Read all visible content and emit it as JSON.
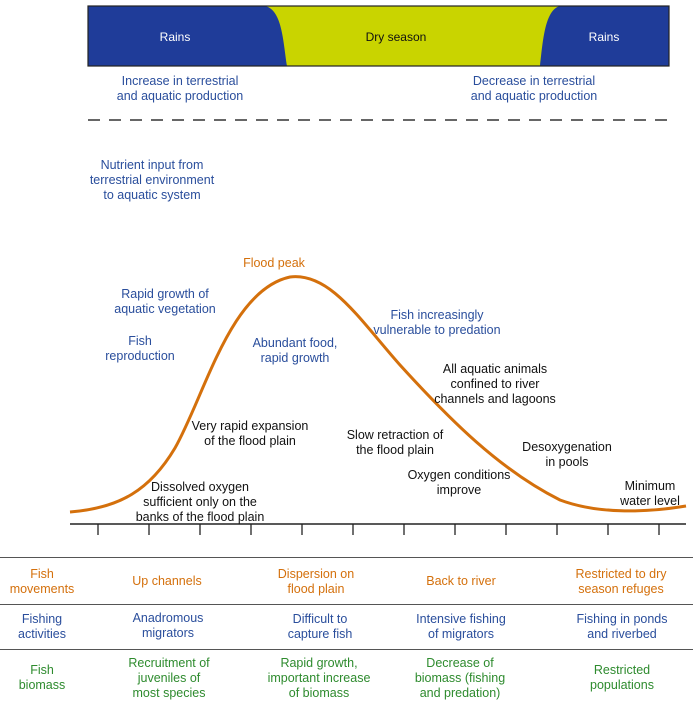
{
  "colors": {
    "rains": "#1f3c99",
    "dry": "#c9d400",
    "blue_text": "#2a4e9c",
    "orange": "#d4700c",
    "green_text": "#2e8b2e"
  },
  "season_bar": {
    "rains_left": "Rains",
    "dry": "Dry season",
    "rains_right": "Rains"
  },
  "top_notes": {
    "increase": [
      "Increase in terrestrial",
      "and aquatic production"
    ],
    "decrease": [
      "Decrease in terrestrial",
      "and aquatic production"
    ],
    "nutrient": [
      "Nutrient input from",
      "terrestrial environment",
      "to aquatic system"
    ]
  },
  "curve_labels": {
    "flood_peak": "Flood peak",
    "rapid_growth_veg": [
      "Rapid growth of",
      "aquatic vegetation"
    ],
    "fish_reproduction": [
      "Fish",
      "reproduction"
    ],
    "abundant_food": [
      "Abundant food,",
      "rapid growth"
    ],
    "fish_vulnerable": [
      "Fish increasingly",
      "vulnerable to predation"
    ],
    "confined": [
      "All aquatic animals",
      "confined to river",
      "channels and lagoons"
    ],
    "rapid_expansion": [
      "Very rapid expansion",
      "of the flood plain"
    ],
    "slow_retraction": [
      "Slow retraction of",
      "the flood plain"
    ],
    "desoxygenation": [
      "Desoxygenation",
      "in pools"
    ],
    "oxygen_improve": [
      "Oxygen conditions",
      "improve"
    ],
    "minimum": [
      "Minimum",
      "water level"
    ],
    "dissolved_oxygen": [
      "Dissolved oxygen",
      "sufficient only on the",
      "banks of the flood plain"
    ]
  },
  "table": {
    "rows": [
      {
        "header": [
          "Fish",
          "movements"
        ],
        "cells": [
          [
            "Up channels"
          ],
          [
            "Dispersion on",
            "flood plain"
          ],
          [
            "Back to river"
          ],
          [
            "Restricted to dry",
            "season refuges"
          ]
        ]
      },
      {
        "header": [
          "Fishing",
          "activities"
        ],
        "cells": [
          [
            "Anadromous",
            "migrators"
          ],
          [
            "Difficult to",
            "capture fish"
          ],
          [
            "Intensive fishing",
            "of migrators"
          ],
          [
            "Fishing in ponds",
            "and riverbed"
          ]
        ]
      },
      {
        "header": [
          "Fish",
          "biomass"
        ],
        "cells": [
          [
            "Recruitment of",
            "juveniles of",
            "most species"
          ],
          [
            "Rapid growth,",
            "important increase",
            "of biomass"
          ],
          [
            "Decrease of",
            "biomass (fishing",
            "and predation)"
          ],
          [
            "Restricted",
            "populations"
          ]
        ]
      }
    ]
  }
}
